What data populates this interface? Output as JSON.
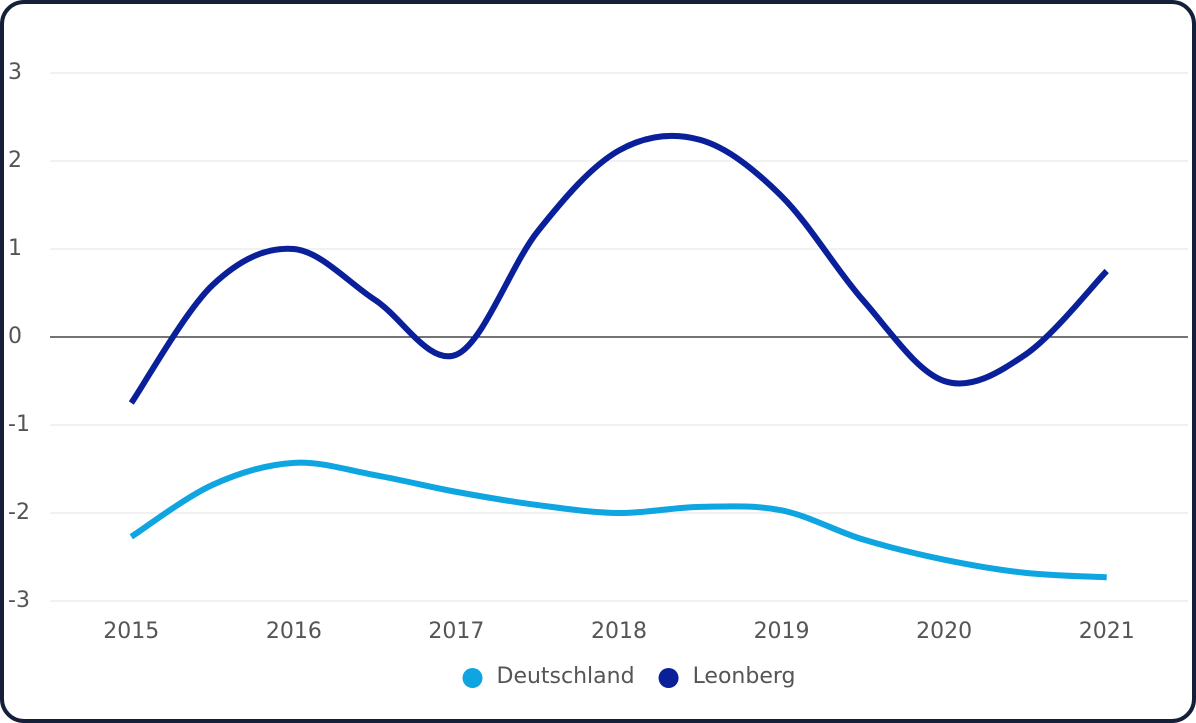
{
  "chart_data": {
    "type": "line",
    "x": [
      2015,
      2015.5,
      2016,
      2016.5,
      2017,
      2017.5,
      2018,
      2018.5,
      2019,
      2019.5,
      2020,
      2020.5,
      2021
    ],
    "series": [
      {
        "name": "Deutschland",
        "color": "#0ea5e0",
        "values": [
          -2.27,
          -1.68,
          -1.43,
          -1.57,
          -1.76,
          -1.91,
          -2.0,
          -1.93,
          -1.97,
          -2.3,
          -2.53,
          -2.68,
          -2.73
        ]
      },
      {
        "name": "Leonberg",
        "color": "#0a1f9a",
        "values": [
          -0.75,
          0.59,
          1.0,
          0.42,
          -0.2,
          1.2,
          2.12,
          2.24,
          1.6,
          0.42,
          -0.5,
          -0.2,
          0.75
        ]
      }
    ],
    "xlim": [
      2014.5,
      2021.5
    ],
    "xticks": [
      2015,
      2016,
      2017,
      2018,
      2019,
      2020,
      2021
    ],
    "ylim": [
      -3,
      3
    ],
    "yticks": [
      -3,
      -2,
      -1,
      0,
      1,
      2,
      3
    ],
    "grid": true,
    "smooth": true,
    "legend": "bottom"
  }
}
